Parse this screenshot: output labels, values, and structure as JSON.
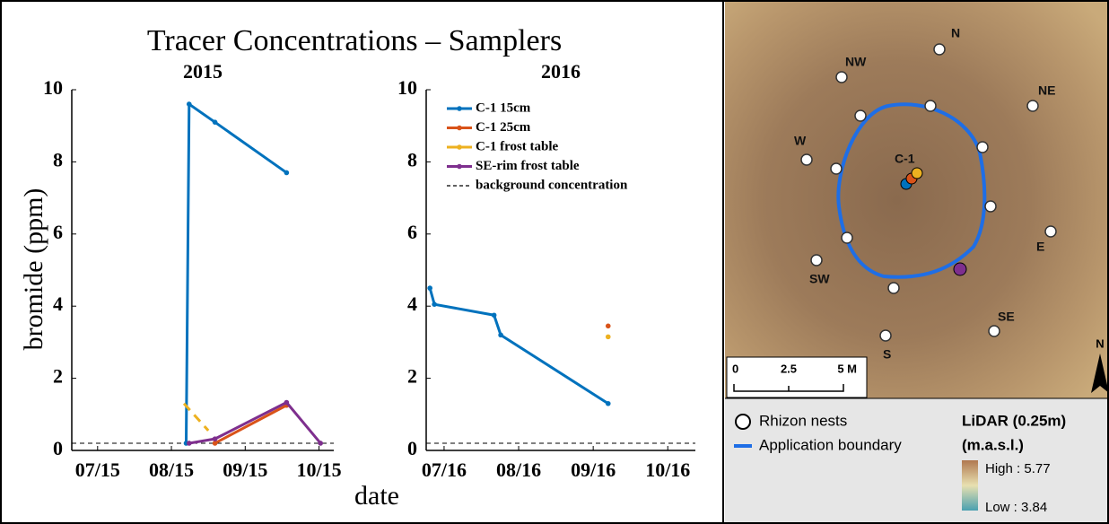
{
  "figure": {
    "title": "Tracer Concentrations – Samplers",
    "y_label": "bromide (ppm)",
    "x_label": "date"
  },
  "chart_data": [
    {
      "type": "line",
      "title": "2015",
      "xlim": [
        6.65,
        10.2
      ],
      "xticks": [
        {
          "value": 7,
          "label": "07/15"
        },
        {
          "value": 8,
          "label": "08/15"
        },
        {
          "value": 9,
          "label": "09/15"
        },
        {
          "value": 10,
          "label": "10/15"
        }
      ],
      "ylim": [
        0,
        10
      ],
      "yticks": [
        0,
        2,
        4,
        6,
        8,
        10
      ],
      "legend": false,
      "background": {
        "value": 0.2
      },
      "series": [
        {
          "color": "#0072bd",
          "x": [
            8.2,
            8.24,
            8.59,
            9.56
          ],
          "values": [
            0.2,
            9.6,
            9.1,
            7.7
          ]
        },
        {
          "color": "#d95319",
          "x": [
            8.59,
            9.56
          ],
          "values": [
            0.2,
            1.25
          ]
        },
        {
          "color": "#edb120",
          "line_style": "dashed",
          "x": [
            8.17,
            8.5
          ],
          "values": [
            1.3,
            0.55
          ]
        },
        {
          "color": "#7e2f8e",
          "x": [
            8.24,
            8.59,
            9.56,
            10.02
          ],
          "values": [
            0.2,
            0.32,
            1.33,
            0.2
          ]
        }
      ]
    },
    {
      "type": "line",
      "title": "2016",
      "xlim": [
        6.76,
        10.37
      ],
      "xticks": [
        {
          "value": 7,
          "label": "07/16"
        },
        {
          "value": 8,
          "label": "08/16"
        },
        {
          "value": 9,
          "label": "09/16"
        },
        {
          "value": 10,
          "label": "10/16"
        }
      ],
      "ylim": [
        0,
        10
      ],
      "yticks": [
        0,
        2,
        4,
        6,
        8,
        10
      ],
      "legend": "top-left",
      "background": {
        "name": "background concentration",
        "value": 0.2
      },
      "series": [
        {
          "name": "C-1 15cm",
          "color": "#0072bd",
          "x": [
            6.81,
            6.87,
            7.67,
            7.76,
            9.2
          ],
          "values": [
            4.5,
            4.05,
            3.75,
            3.2,
            1.3
          ]
        },
        {
          "name": "C-1 25cm",
          "color": "#d95319",
          "x": [
            9.2
          ],
          "values": [
            3.45
          ]
        },
        {
          "name": "C-1 frost table",
          "color": "#edb120",
          "x": [
            9.2
          ],
          "values": [
            3.15
          ]
        },
        {
          "name": "SE-rim frost table",
          "color": "#7e2f8e",
          "x": [],
          "values": []
        }
      ]
    }
  ],
  "map": {
    "labels": {
      "n": "N",
      "nw": "NW",
      "ne": "NE",
      "w": "W",
      "c1": "C-1",
      "e": "E",
      "sw": "SW",
      "se": "SE",
      "s": "S"
    },
    "scale": [
      "0",
      "2.5",
      "5 M"
    ],
    "north": "N",
    "legend": {
      "nests": "Rhizon nests",
      "boundary": "Application boundary",
      "lidar": "LiDAR (0.25m)",
      "units": "(m.a.s.l.)",
      "high": "High : 5.77",
      "low": "Low : 3.84"
    }
  }
}
